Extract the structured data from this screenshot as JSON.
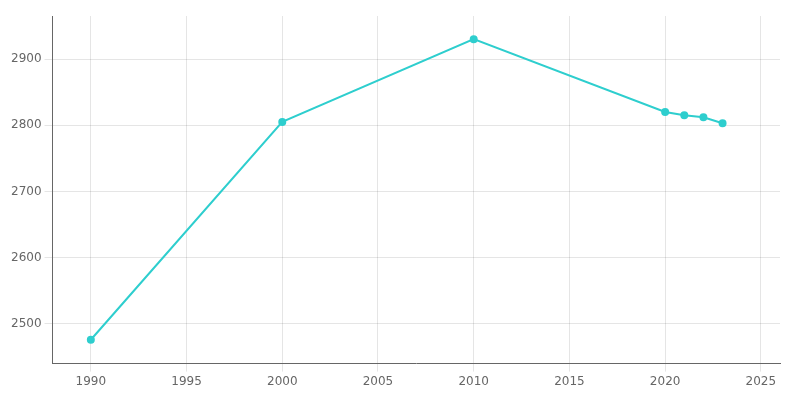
{
  "chart_data": {
    "type": "line",
    "x": [
      1990,
      2000,
      2010,
      2020,
      2021,
      2022,
      2023
    ],
    "values": [
      2476,
      2805,
      2930,
      2820,
      2815,
      2812,
      2803
    ],
    "color": "#2ecece",
    "marker": "circle",
    "xlim": [
      1988,
      2026
    ],
    "ylim": [
      2440,
      2965
    ],
    "xticks": [
      1990,
      1995,
      2000,
      2005,
      2010,
      2015,
      2020,
      2025
    ],
    "yticks": [
      2500,
      2600,
      2700,
      2800,
      2900
    ],
    "grid": true
  }
}
